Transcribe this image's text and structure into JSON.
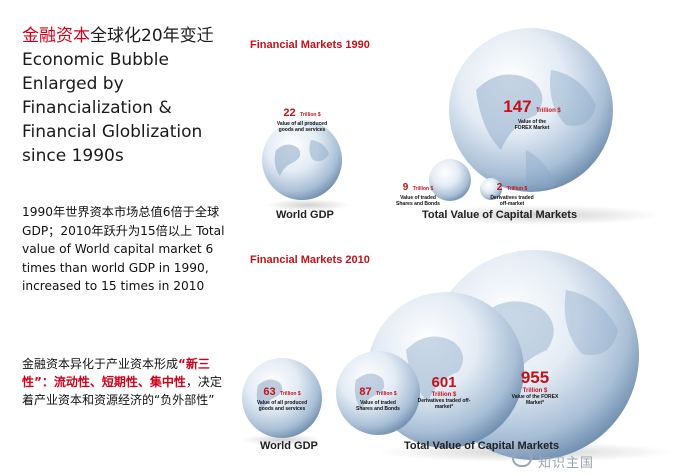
{
  "left": {
    "title_red": "金融资本",
    "title_rest": "全球化20年变迁 Economic Bubble Enlarged by Financialization & Financial Globlization since 1990s",
    "para1": "1990年世界资本市场总值6倍于全球GDP；2010年跃升为15倍以上 Total value of World capital market 6 times than world GDP in 1990, increased to 15 times in 2010",
    "para2_a": "金融资本异化于产业资本形成",
    "para2_red": "“新三性”：流动性、短期性、集中性",
    "para2_b": "，决定着产业资本和资源经济的“负外部性”"
  },
  "panel1990": {
    "title": "Financial Markets 1990",
    "gdp_value": "22",
    "gdp_unit": "Trillion $",
    "gdp_desc": "Value of all produced goods and services",
    "gdp_caption": "World GDP",
    "forex_value": "147",
    "forex_unit": "Trillion $",
    "forex_desc": "Value of the FOREX Market",
    "shares_value": "9",
    "shares_unit": "Trillion $",
    "shares_desc": "Value of traded Shares and Bonds",
    "deriv_value": "2",
    "deriv_unit": "Trillion $",
    "deriv_desc": "Derivatives traded off-market",
    "capital_caption": "Total Value of Capital Markets"
  },
  "panel2010": {
    "title": "Financial Markets 2010",
    "gdp_value": "63",
    "gdp_unit": "Trillion $",
    "gdp_desc": "Value of all produced goods and services",
    "gdp_caption": "World GDP",
    "shares_value": "87",
    "shares_unit": "Trillion $",
    "shares_desc": "Value of traded Shares and Bonds",
    "deriv_value": "601",
    "deriv_unit": "Trillion $",
    "deriv_desc": "Derivatives traded off-market*",
    "forex_value": "955",
    "forex_unit": "Trillion $",
    "forex_desc": "Value of the FOREX Market*",
    "capital_caption": "Total Value of Capital Markets"
  },
  "watermark": "知识主国"
}
